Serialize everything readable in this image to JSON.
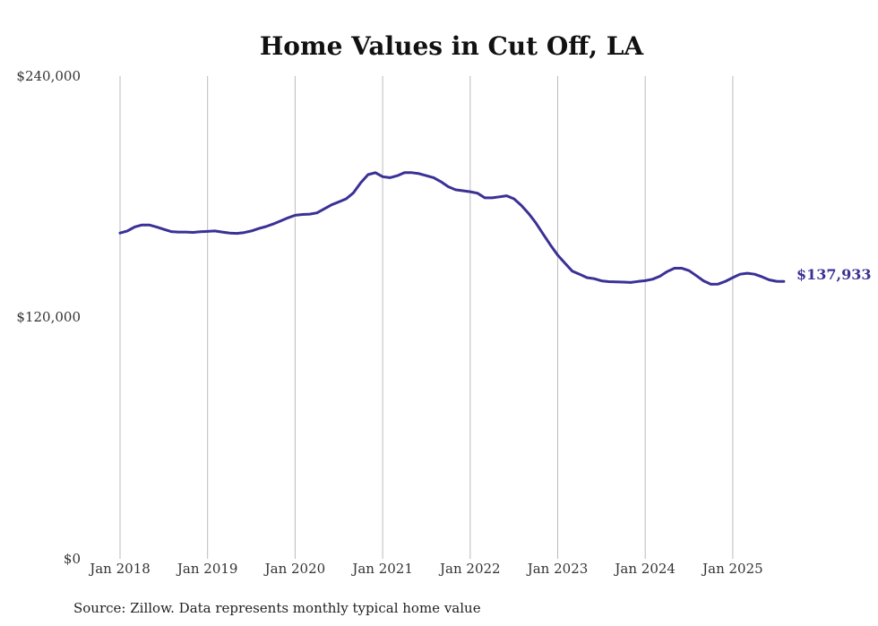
{
  "chart_data": {
    "type": "line",
    "title": "Home Values in Cut Off, LA",
    "xlabel": "",
    "ylabel": "",
    "ylim": [
      0,
      240000
    ],
    "y_ticks": [
      "$240,000",
      "$120,000",
      "$0"
    ],
    "x_ticks": [
      "Jan 2018",
      "Jan 2019",
      "Jan 2020",
      "Jan 2021",
      "Jan 2022",
      "Jan 2023",
      "Jan 2024",
      "Jan 2025"
    ],
    "grid": "vertical",
    "line_color": "#3a3196",
    "end_label": "$137,933",
    "series": [
      {
        "x": [
          "2018-01",
          "2018-02",
          "2018-03",
          "2018-04",
          "2018-05",
          "2018-06",
          "2018-07",
          "2018-08",
          "2018-09",
          "2018-10",
          "2018-11",
          "2018-12",
          "2019-01",
          "2019-02",
          "2019-03",
          "2019-04",
          "2019-05",
          "2019-06",
          "2019-07",
          "2019-08",
          "2019-09",
          "2019-10",
          "2019-11",
          "2019-12",
          "2020-01",
          "2020-02",
          "2020-03",
          "2020-04",
          "2020-05",
          "2020-06",
          "2020-07",
          "2020-08",
          "2020-09",
          "2020-10",
          "2020-11",
          "2020-12",
          "2021-01",
          "2021-02",
          "2021-03",
          "2021-04",
          "2021-05",
          "2021-06",
          "2021-07",
          "2021-08",
          "2021-09",
          "2021-10",
          "2021-11",
          "2021-12",
          "2022-01",
          "2022-02",
          "2022-03",
          "2022-04",
          "2022-05",
          "2022-06",
          "2022-07",
          "2022-08",
          "2022-09",
          "2022-10",
          "2022-11",
          "2022-12",
          "2023-01",
          "2023-02",
          "2023-03",
          "2023-04",
          "2023-05",
          "2023-06",
          "2023-07",
          "2023-08",
          "2023-09",
          "2023-10",
          "2023-11",
          "2023-12",
          "2024-01",
          "2024-02",
          "2024-03",
          "2024-04",
          "2024-05",
          "2024-06",
          "2024-07",
          "2024-08",
          "2024-09",
          "2024-10",
          "2024-11",
          "2024-12",
          "2025-01",
          "2025-02",
          "2025-03",
          "2025-04",
          "2025-05",
          "2025-06",
          "2025-07",
          "2025-08"
        ],
        "values": [
          162000,
          163000,
          165000,
          166000,
          166000,
          165000,
          163800,
          162700,
          162500,
          162500,
          162300,
          162600,
          162800,
          163000,
          162500,
          162000,
          161800,
          162200,
          163000,
          164200,
          165200,
          166500,
          168000,
          169500,
          170800,
          171200,
          171400,
          172000,
          174000,
          176000,
          177500,
          179000,
          182000,
          187000,
          191000,
          192000,
          190000,
          189500,
          190500,
          192000,
          192000,
          191500,
          190500,
          189500,
          187500,
          185000,
          183500,
          183000,
          182500,
          181800,
          179500,
          179500,
          180000,
          180500,
          179000,
          175800,
          171800,
          167000,
          161500,
          156000,
          151000,
          147000,
          143000,
          141500,
          139800,
          139300,
          138200,
          137800,
          137700,
          137600,
          137400,
          137900,
          138300,
          139000,
          140500,
          142800,
          144500,
          144500,
          143300,
          140800,
          138200,
          136500,
          136600,
          138000,
          139800,
          141500,
          142000,
          141500,
          140200,
          138700,
          138000,
          137933
        ]
      }
    ]
  },
  "footer": {
    "source": "Source: Zillow. Data represents monthly typical home value"
  }
}
